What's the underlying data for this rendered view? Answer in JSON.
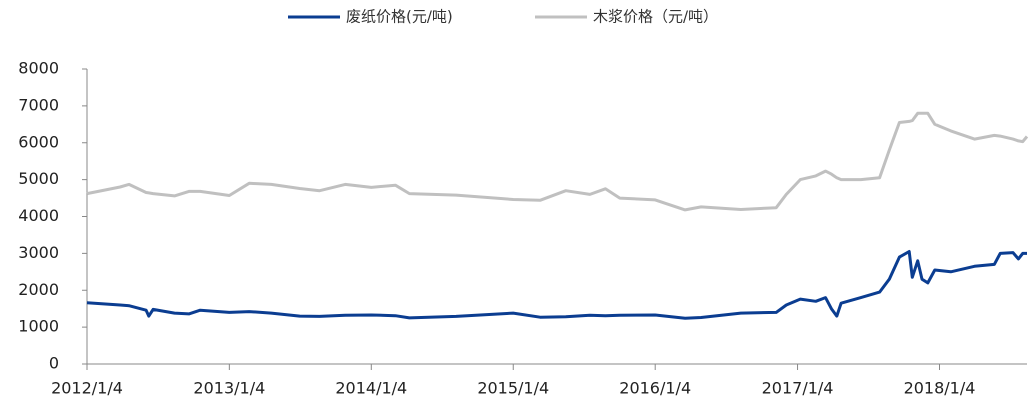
{
  "chart_data": {
    "type": "line",
    "x": [
      "2012/1/4",
      "2012/3/29",
      "2012/4/21",
      "2012/6/4",
      "2012/6/11",
      "2012/6/22",
      "2012/8/16",
      "2012/9/22",
      "2012/10/21",
      "2013/1/4",
      "2013/2/24",
      "2013/4/22",
      "2013/7/4",
      "2013/8/24",
      "2013/10/29",
      "2014/1/4",
      "2014/3/7",
      "2014/4/12",
      "2014/8/10",
      "2015/1/4",
      "2015/3/14",
      "2015/5/19",
      "2015/7/20",
      "2015/8/29",
      "2015/10/5",
      "2016/1/4",
      "2016/3/21",
      "2016/5/1",
      "2016/8/11",
      "2016/11/10",
      "2016/12/6",
      "2017/1/11",
      "2017/2/20",
      "2017/3/17",
      "2017/4/1",
      "2017/4/15",
      "2017/4/26",
      "2017/6/16",
      "2017/8/3",
      "2017/8/28",
      "2017/9/23",
      "2017/10/18",
      "2017/10/26",
      "2017/11/9",
      "2017/11/20",
      "2017/12/5",
      "2017/12/23",
      "2018/2/2",
      "2018/4/4",
      "2018/5/25",
      "2018/6/9",
      "2018/7/12",
      "2018/7/26",
      "2018/8/6",
      "2018/8/17"
    ],
    "series": [
      {
        "name": "废纸价格(元/吨)",
        "color": "#0b3d91",
        "values": [
          1660,
          1600,
          1580,
          1460,
          1300,
          1480,
          1380,
          1360,
          1460,
          1400,
          1420,
          1380,
          1300,
          1290,
          1320,
          1330,
          1310,
          1250,
          1290,
          1380,
          1270,
          1280,
          1320,
          1310,
          1320,
          1330,
          1240,
          1260,
          1380,
          1400,
          1600,
          1760,
          1700,
          1800,
          1500,
          1300,
          1650,
          1800,
          1950,
          2300,
          2900,
          3050,
          2350,
          2800,
          2300,
          2200,
          2550,
          2500,
          2650,
          2700,
          3000,
          3020,
          2850,
          3000,
          3000
        ]
      },
      {
        "name": "木浆价格（元/吨）",
        "color": "#c0c0c0",
        "values": [
          4620,
          4800,
          4870,
          4650,
          4640,
          4620,
          4560,
          4680,
          4680,
          4570,
          4900,
          4870,
          4760,
          4700,
          4870,
          4790,
          4850,
          4620,
          4580,
          4460,
          4440,
          4700,
          4600,
          4750,
          4500,
          4450,
          4180,
          4260,
          4190,
          4240,
          4600,
          5000,
          5100,
          5230,
          5150,
          5050,
          5000,
          5000,
          5050,
          5800,
          6550,
          6580,
          6600,
          6800,
          6800,
          6800,
          6500,
          6320,
          6100,
          6200,
          6180,
          6100,
          6050,
          6030,
          6170
        ]
      }
    ],
    "xlim": [
      "2012/1/4",
      "2018/8/17"
    ],
    "xticks": [
      "2012/1/4",
      "2013/1/4",
      "2014/1/4",
      "2015/1/4",
      "2016/1/4",
      "2017/1/4",
      "2018/1/4"
    ],
    "ylim": [
      0,
      8000
    ],
    "yticks": [
      0,
      1000,
      2000,
      3000,
      4000,
      5000,
      6000,
      7000,
      8000
    ],
    "legend": "top"
  }
}
